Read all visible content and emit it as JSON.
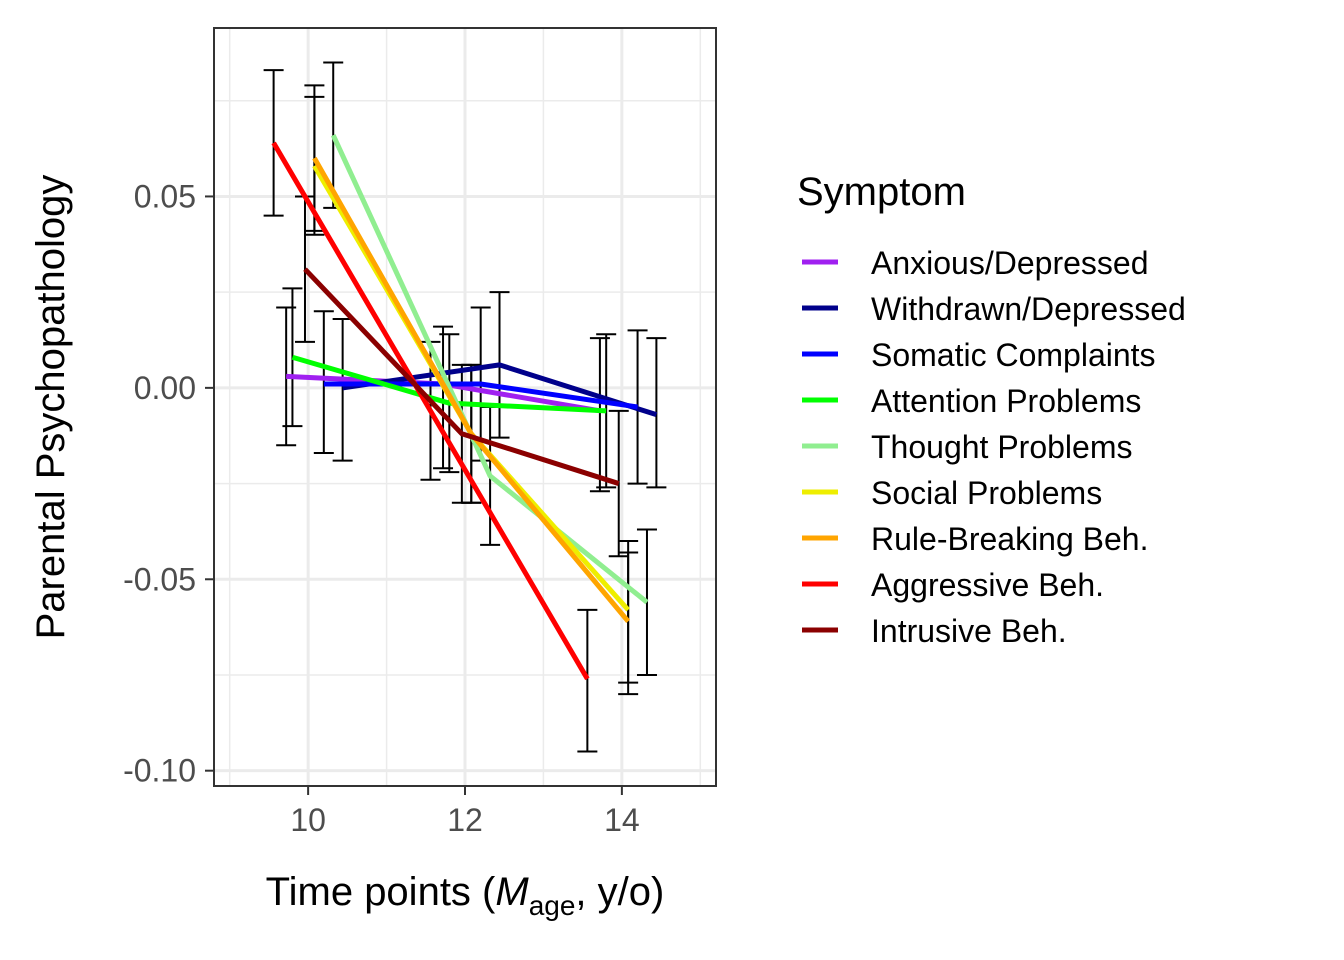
{
  "chart_data": {
    "type": "line",
    "title": "",
    "xlabel_parts": {
      "prefix": "Time points (",
      "m": "M",
      "sub": "age",
      "suffix": ", y/o)"
    },
    "ylabel": "Parental Psychopathology",
    "xlim": [
      8.8,
      15.2
    ],
    "ylim": [
      -0.104,
      0.094
    ],
    "x_ticks": [
      10,
      12,
      14
    ],
    "x_tick_labels": [
      "10",
      "12",
      "14"
    ],
    "y_ticks": [
      -0.1,
      -0.05,
      0.0,
      0.05
    ],
    "y_tick_labels": [
      "-0.10",
      "-0.05",
      "0.00",
      "0.05"
    ],
    "y_minor_ticks": [
      -0.075,
      -0.025,
      0.025,
      0.075
    ],
    "grid": true,
    "legend": {
      "title": "Symptom",
      "position": "right"
    },
    "series": [
      {
        "name": "Anxious/Depressed",
        "color": "#a020f0",
        "points": [
          {
            "x": 9.72,
            "y": 0.003,
            "lo": -0.015,
            "hi": 0.021
          },
          {
            "x": 11.72,
            "y": 0.001,
            "lo": -0.021,
            "hi": 0.016
          },
          {
            "x": 13.72,
            "y": -0.006,
            "lo": -0.027,
            "hi": 0.013
          }
        ]
      },
      {
        "name": "Withdrawn/Depressed",
        "color": "#00008b",
        "points": [
          {
            "x": 10.44,
            "y": 0.0,
            "lo": -0.019,
            "hi": 0.018
          },
          {
            "x": 12.44,
            "y": 0.006,
            "lo": -0.013,
            "hi": 0.025
          },
          {
            "x": 14.44,
            "y": -0.007,
            "lo": -0.026,
            "hi": 0.013
          }
        ]
      },
      {
        "name": "Somatic Complaints",
        "color": "#0000ff",
        "points": [
          {
            "x": 10.2,
            "y": 0.001,
            "lo": -0.017,
            "hi": 0.02
          },
          {
            "x": 12.2,
            "y": 0.001,
            "lo": -0.019,
            "hi": 0.021
          },
          {
            "x": 14.2,
            "y": -0.005,
            "lo": -0.025,
            "hi": 0.015
          }
        ]
      },
      {
        "name": "Attention Problems",
        "color": "#00ff00",
        "points": [
          {
            "x": 9.8,
            "y": 0.008,
            "lo": -0.01,
            "hi": 0.026
          },
          {
            "x": 11.8,
            "y": -0.004,
            "lo": -0.022,
            "hi": 0.014
          },
          {
            "x": 13.8,
            "y": -0.006,
            "lo": -0.026,
            "hi": 0.014
          }
        ]
      },
      {
        "name": "Thought Problems",
        "color": "#90ee90",
        "points": [
          {
            "x": 10.32,
            "y": 0.066,
            "lo": 0.047,
            "hi": 0.085
          },
          {
            "x": 12.32,
            "y": -0.023,
            "lo": -0.041,
            "hi": -0.005
          },
          {
            "x": 14.32,
            "y": -0.056,
            "lo": -0.075,
            "hi": -0.037
          }
        ]
      },
      {
        "name": "Social Problems",
        "color": "#eeee00",
        "points": [
          {
            "x": 10.08,
            "y": 0.058,
            "lo": 0.04,
            "hi": 0.076
          },
          {
            "x": 12.08,
            "y": -0.012,
            "lo": -0.03,
            "hi": 0.006
          },
          {
            "x": 14.08,
            "y": -0.058,
            "lo": -0.077,
            "hi": -0.04
          }
        ]
      },
      {
        "name": "Rule-Breaking Beh.",
        "color": "#ffa500",
        "points": [
          {
            "x": 10.08,
            "y": 0.06,
            "lo": 0.041,
            "hi": 0.079
          },
          {
            "x": 12.08,
            "y": -0.012,
            "lo": -0.03,
            "hi": 0.006
          },
          {
            "x": 14.08,
            "y": -0.061,
            "lo": -0.08,
            "hi": -0.043
          }
        ]
      },
      {
        "name": "Aggressive Beh.",
        "color": "#ff0000",
        "points": [
          {
            "x": 9.56,
            "y": 0.064,
            "lo": 0.045,
            "hi": 0.083
          },
          {
            "x": 11.56,
            "y": -0.006,
            "lo": -0.024,
            "hi": 0.012
          },
          {
            "x": 13.56,
            "y": -0.076,
            "lo": -0.095,
            "hi": -0.058
          }
        ]
      },
      {
        "name": "Intrusive Beh.",
        "color": "#8b0000",
        "points": [
          {
            "x": 9.96,
            "y": 0.031,
            "lo": 0.012,
            "hi": 0.05
          },
          {
            "x": 11.96,
            "y": -0.012,
            "lo": -0.03,
            "hi": 0.006
          },
          {
            "x": 13.96,
            "y": -0.025,
            "lo": -0.044,
            "hi": -0.006
          }
        ]
      }
    ]
  }
}
